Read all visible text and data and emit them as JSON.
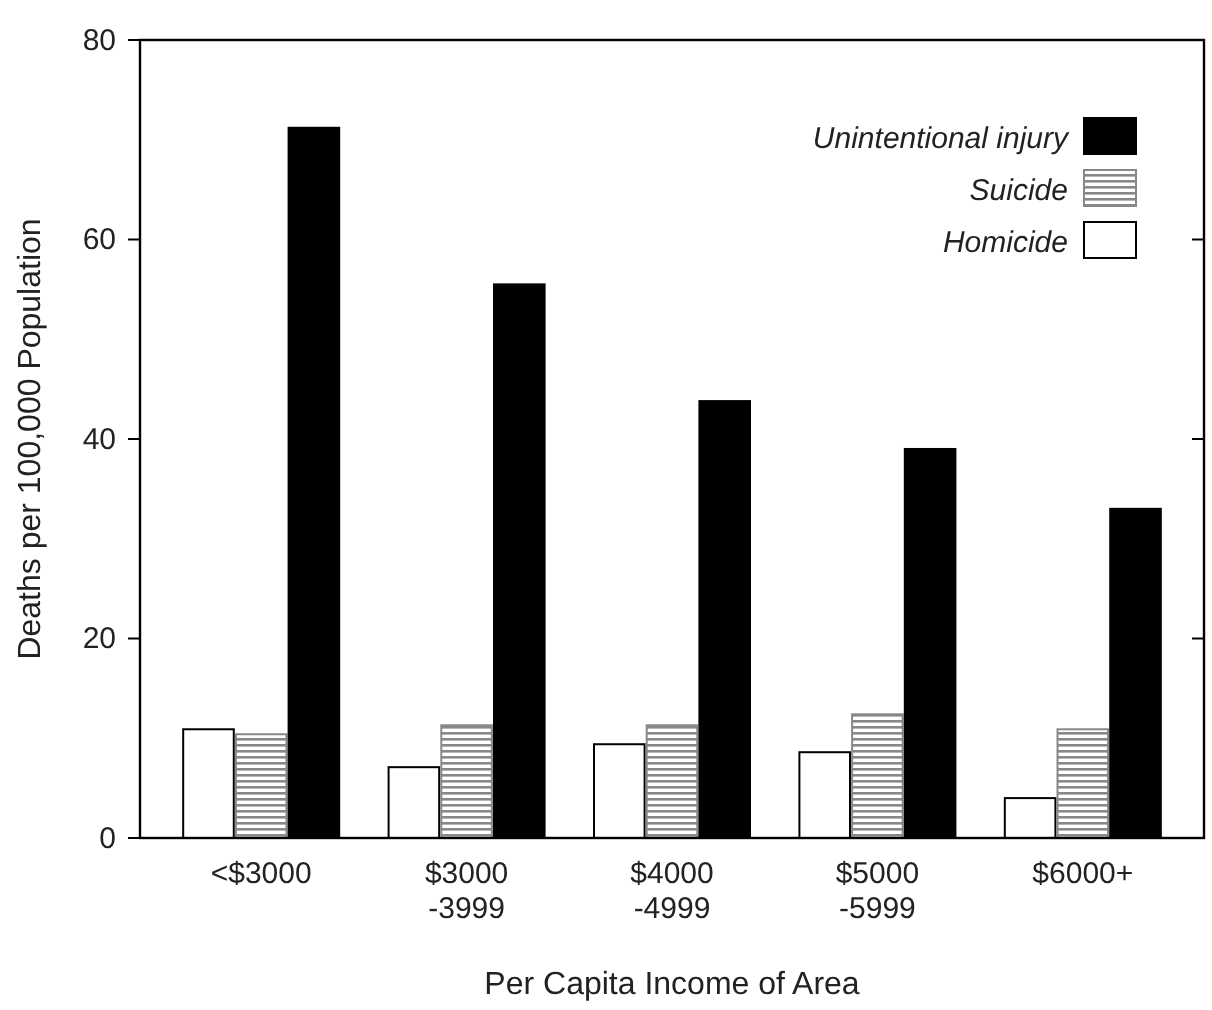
{
  "chart_data": {
    "type": "bar",
    "xlabel": "Per Capita Income of Area",
    "ylabel": "Deaths per 100,000 Population",
    "categories": [
      "<$3000",
      "$3000\n-3999",
      "$4000\n-4999",
      "$5000\n-5999",
      "$6000+"
    ],
    "series": [
      {
        "name": "Homicide",
        "color": "#ffffff",
        "values": [
          10.9,
          7.1,
          9.4,
          8.6,
          4.0
        ]
      },
      {
        "name": "Suicide",
        "color": "#888888",
        "values": [
          10.4,
          11.3,
          11.3,
          12.4,
          10.9
        ]
      },
      {
        "name": "Unintentional injury",
        "color": "#000000",
        "values": [
          71.2,
          55.5,
          43.8,
          39.0,
          33.0
        ]
      }
    ],
    "ylim": [
      0,
      80
    ],
    "yticks": [
      0,
      20,
      40,
      60,
      80
    ],
    "grid": false,
    "legend": "top right"
  }
}
